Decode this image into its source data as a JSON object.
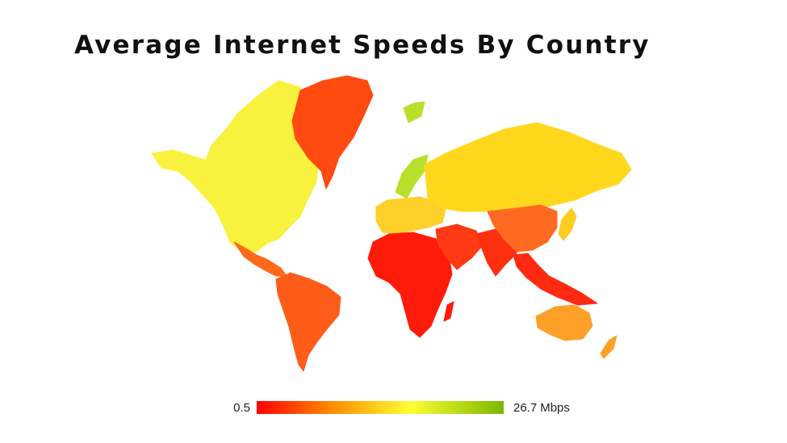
{
  "title": "Average Internet Speeds By Country",
  "legend": {
    "min_label": "0.5",
    "max_label": "26.7",
    "unit": "Mbps",
    "scale_min": 0.5,
    "scale_max": 26.7,
    "colors": [
      "#ff0000",
      "#ff8a00",
      "#ffff33",
      "#7ab800"
    ]
  },
  "map_colors": {
    "north_america": "#f8f23e",
    "greenland": "#ff4a10",
    "central_america": "#ff6a1a",
    "south_america": "#ff5c1a",
    "europe_north": "#b8e02a",
    "europe": "#ffcf2a",
    "russia": "#ffd81e",
    "africa": "#ff1a0a",
    "middle_east": "#ff3a14",
    "south_asia": "#ff3010",
    "china": "#ff6a22",
    "east_asia": "#ffcc22",
    "southeast_asia": "#ff2a10",
    "australia": "#ffa028"
  }
}
